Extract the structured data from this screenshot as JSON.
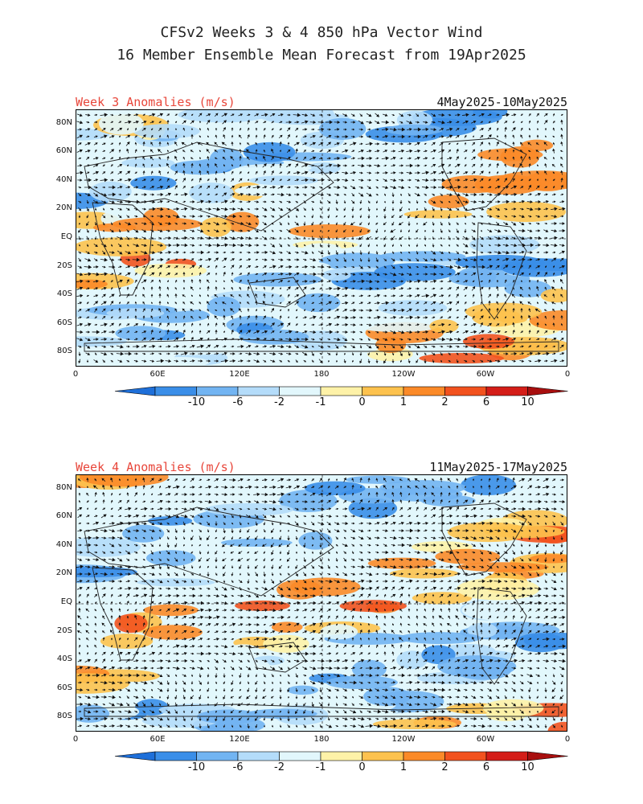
{
  "header": {
    "line1": "CFSv2 Weeks 3 & 4 850 hPa Vector Wind",
    "line2": "16 Member Ensemble Mean Forecast from 19Apr2025"
  },
  "panels": [
    {
      "title": "Week 3 Anomalies (m/s)",
      "dates": "4May2025-10May2025"
    },
    {
      "title": "Week 4 Anomalies (m/s)",
      "dates": "11May2025-17May2025"
    }
  ],
  "axes": {
    "lat_labels": [
      "80N",
      "60N",
      "40N",
      "20N",
      "EQ",
      "20S",
      "40S",
      "60S",
      "80S"
    ],
    "lon_labels": [
      "0",
      "60E",
      "120E",
      "180",
      "120W",
      "60W",
      "0"
    ]
  },
  "colorbar": {
    "labels": [
      "-10",
      "-6",
      "-2",
      "-1",
      "0",
      "1",
      "2",
      "6",
      "10"
    ],
    "colors": [
      "#1e6fd9",
      "#3a8ee8",
      "#72b4f2",
      "#b4dcfa",
      "#e2f7fc",
      "#fef2a8",
      "#fdc24e",
      "#fb8a28",
      "#f2521e",
      "#d41d18",
      "#a80f0f"
    ]
  }
}
